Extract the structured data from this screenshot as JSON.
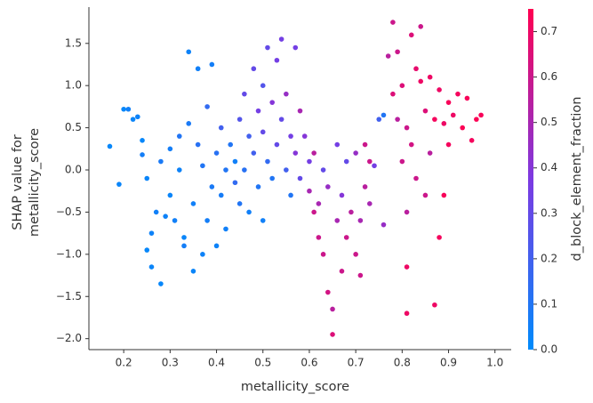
{
  "chart_data": {
    "type": "scatter",
    "xlabel": "metallicity_score",
    "ylabel": [
      "SHAP value for",
      "metallicity_score"
    ],
    "colorbar_label": "d_block_element_fraction",
    "colormap": [
      "#008bfb",
      "#7c3ae2",
      "#ff0051"
    ],
    "xlim": [
      0.125,
      1.035
    ],
    "ylim": [
      -2.13,
      1.93
    ],
    "clim": [
      0,
      0.75
    ],
    "xticks": [
      0.2,
      0.3,
      0.4,
      0.5,
      0.6,
      0.7,
      0.8,
      0.9,
      {
        "value": 1.0,
        "label": "1.0"
      }
    ],
    "yticks": [
      {
        "value": -2,
        "label": "−2.0"
      },
      {
        "value": -1.5,
        "label": "−1.5"
      },
      {
        "value": -1,
        "label": "−1.0"
      },
      {
        "value": -0.5,
        "label": "−0.5"
      },
      {
        "value": 0,
        "label": "0.0"
      },
      {
        "value": 0.5,
        "label": "0.5"
      },
      {
        "value": 1,
        "label": "1.0"
      },
      {
        "value": 1.5,
        "label": "1.5"
      }
    ],
    "cticks": [
      {
        "value": 0,
        "label": "0.0"
      },
      0.1,
      0.2,
      0.3,
      0.4,
      0.5,
      0.6,
      0.7
    ],
    "x": [
      0.17,
      0.19,
      0.2,
      0.21,
      0.22,
      0.23,
      0.24,
      0.24,
      0.25,
      0.25,
      0.26,
      0.26,
      0.27,
      0.28,
      0.28,
      0.29,
      0.3,
      0.3,
      0.31,
      0.32,
      0.32,
      0.33,
      0.33,
      0.34,
      0.34,
      0.35,
      0.35,
      0.36,
      0.36,
      0.37,
      0.37,
      0.38,
      0.38,
      0.39,
      0.39,
      0.4,
      0.4,
      0.41,
      0.41,
      0.42,
      0.42,
      0.43,
      0.44,
      0.44,
      0.45,
      0.45,
      0.46,
      0.46,
      0.47,
      0.47,
      0.48,
      0.48,
      0.49,
      0.49,
      0.5,
      0.5,
      0.5,
      0.51,
      0.51,
      0.52,
      0.52,
      0.53,
      0.53,
      0.54,
      0.54,
      0.55,
      0.55,
      0.56,
      0.56,
      0.57,
      0.57,
      0.58,
      0.58,
      0.59,
      0.6,
      0.6,
      0.61,
      0.61,
      0.62,
      0.62,
      0.63,
      0.63,
      0.64,
      0.64,
      0.65,
      0.65,
      0.66,
      0.66,
      0.67,
      0.67,
      0.68,
      0.68,
      0.69,
      0.7,
      0.7,
      0.71,
      0.71,
      0.72,
      0.72,
      0.73,
      0.73,
      0.74,
      0.75,
      0.76,
      0.76,
      0.77,
      0.78,
      0.78,
      0.79,
      0.79,
      0.8,
      0.8,
      0.81,
      0.81,
      0.81,
      0.81,
      0.82,
      0.82,
      0.83,
      0.83,
      0.84,
      0.84,
      0.85,
      0.85,
      0.86,
      0.86,
      0.87,
      0.87,
      0.88,
      0.88,
      0.89,
      0.89,
      0.9,
      0.9,
      0.91,
      0.92,
      0.93,
      0.94,
      0.95,
      0.96,
      0.97
    ],
    "values": [
      0.28,
      -0.17,
      0.72,
      0.72,
      0.6,
      0.63,
      0.35,
      0.18,
      -0.1,
      -0.95,
      -0.75,
      -1.15,
      -0.5,
      -1.35,
      0.1,
      -0.55,
      0.25,
      -0.3,
      -0.6,
      0.4,
      0.0,
      -0.8,
      -0.9,
      0.55,
      1.4,
      -0.4,
      -1.2,
      0.3,
      1.2,
      -1.0,
      0.05,
      -0.6,
      0.75,
      -0.2,
      1.25,
      -0.9,
      0.2,
      -0.3,
      0.5,
      -0.7,
      0.0,
      0.3,
      0.1,
      -0.15,
      0.6,
      -0.4,
      0.9,
      0.0,
      0.4,
      -0.5,
      1.2,
      0.2,
      0.7,
      -0.2,
      1.0,
      0.45,
      -0.6,
      1.45,
      0.1,
      0.8,
      -0.1,
      1.3,
      0.3,
      1.55,
      0.6,
      0.0,
      0.9,
      0.4,
      -0.3,
      1.45,
      0.2,
      0.7,
      -0.1,
      0.4,
      0.1,
      -0.25,
      0.2,
      -0.5,
      -0.4,
      -0.8,
      0.0,
      -1.0,
      -1.45,
      -0.2,
      -1.65,
      -1.95,
      -0.6,
      0.3,
      -1.2,
      -0.3,
      0.1,
      -0.8,
      -0.5,
      -1.0,
      0.2,
      -0.6,
      -1.25,
      0.3,
      -0.2,
      -0.4,
      0.1,
      0.05,
      0.6,
      0.65,
      -0.65,
      1.35,
      1.75,
      0.9,
      1.4,
      0.6,
      1.0,
      0.1,
      0.5,
      -0.5,
      -1.15,
      -1.7,
      0.3,
      1.6,
      1.2,
      -0.1,
      1.7,
      1.05,
      0.7,
      -0.3,
      1.1,
      0.2,
      -1.6,
      0.6,
      -0.8,
      0.95,
      0.55,
      -0.3,
      0.8,
      0.3,
      0.65,
      0.9,
      0.5,
      0.85,
      0.35,
      0.6,
      0.65
    ],
    "color_values": [
      0.02,
      0.03,
      0.02,
      0.05,
      0.03,
      0.04,
      0.02,
      0.06,
      0.03,
      0.02,
      0.04,
      0.03,
      0.05,
      0.02,
      0.08,
      0.04,
      0.06,
      0.03,
      0.05,
      0.1,
      0.04,
      0.03,
      0.06,
      0.08,
      0.04,
      0.05,
      0.03,
      0.12,
      0.05,
      0.04,
      0.1,
      0.06,
      0.15,
      0.08,
      0.06,
      0.04,
      0.12,
      0.07,
      0.2,
      0.05,
      0.1,
      0.1,
      0.05,
      0.15,
      0.25,
      0.1,
      0.3,
      0.12,
      0.2,
      0.05,
      0.3,
      0.2,
      0.35,
      0.1,
      0.25,
      0.3,
      0.05,
      0.3,
      0.15,
      0.4,
      0.1,
      0.35,
      0.3,
      0.35,
      0.3,
      0.2,
      0.45,
      0.35,
      0.1,
      0.35,
      0.4,
      0.5,
      0.3,
      0.4,
      0.35,
      0.5,
      0.55,
      0.6,
      0.5,
      0.6,
      0.3,
      0.6,
      0.62,
      0.45,
      0.55,
      0.65,
      0.5,
      0.35,
      0.6,
      0.4,
      0.3,
      0.6,
      0.55,
      0.6,
      0.45,
      0.5,
      0.6,
      0.6,
      0.55,
      0.5,
      0.6,
      0.35,
      0.2,
      0.1,
      0.45,
      0.55,
      0.6,
      0.65,
      0.6,
      0.55,
      0.65,
      0.6,
      0.6,
      0.55,
      0.7,
      0.7,
      0.62,
      0.65,
      0.68,
      0.6,
      0.6,
      0.7,
      0.65,
      0.6,
      0.7,
      0.55,
      0.7,
      0.72,
      0.72,
      0.7,
      0.7,
      0.73,
      0.73,
      0.72,
      0.7,
      0.72,
      0.74,
      0.73,
      0.72,
      0.74,
      0.73
    ]
  }
}
